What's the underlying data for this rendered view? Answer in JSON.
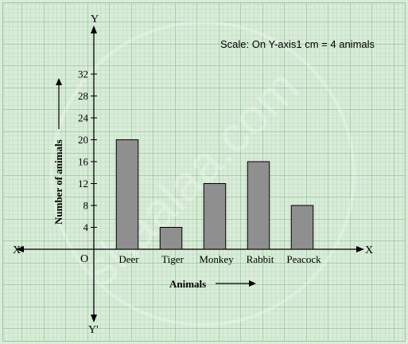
{
  "chart_data": {
    "type": "bar",
    "title": "",
    "scale_note": "Scale: On Y-axis1 cm = 4 animals",
    "xlabel": "Animals",
    "ylabel": "Number of animals",
    "categories": [
      "Deer",
      "Tiger",
      "Monkey",
      "Rabbit",
      "Peacock"
    ],
    "values": [
      20,
      4,
      12,
      16,
      8
    ],
    "ylim": [
      0,
      32
    ],
    "yticks": [
      4,
      8,
      12,
      16,
      20,
      24,
      28,
      32
    ],
    "grid": true,
    "legend": "none",
    "axis_labels": {
      "x_positive": "X",
      "x_negative": "X'",
      "y_positive": "Y",
      "y_negative": "Y'",
      "origin": "O"
    },
    "watermark": "shaalaa.com",
    "colors": {
      "background": "#d9ecd9",
      "grid_minor": "#a7cfa7",
      "grid_major": "#79b379",
      "bar_fill": "#8f8f8f",
      "bar_stroke": "#000000"
    }
  }
}
